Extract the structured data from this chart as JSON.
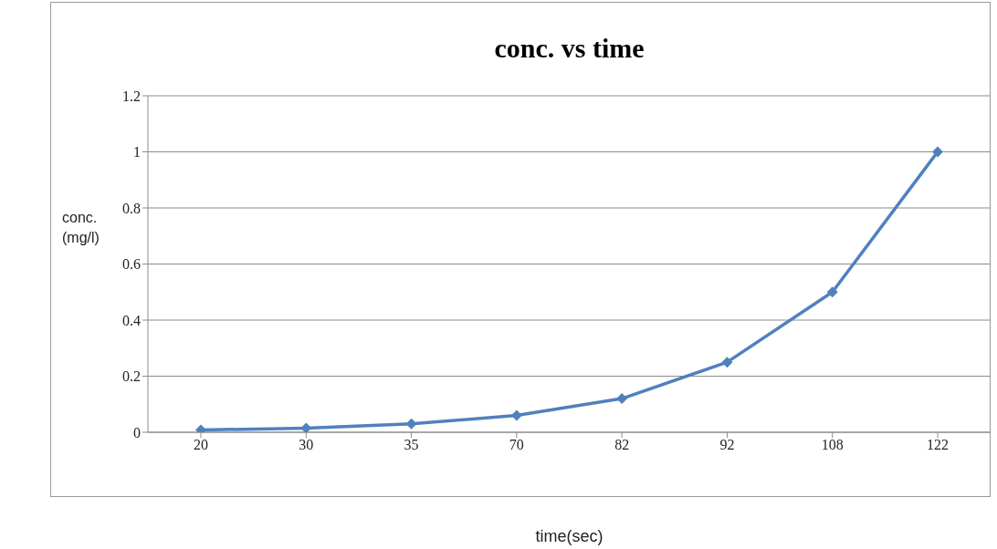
{
  "chart_data": {
    "type": "line",
    "title": "conc. vs time",
    "xlabel": "time(sec)",
    "ylabel": "conc.\n(mg/l)",
    "categories": [
      "20",
      "30",
      "35",
      "70",
      "82",
      "92",
      "108",
      "122"
    ],
    "series": [
      {
        "color": "#4f81bd",
        "values": [
          0.008,
          0.015,
          0.03,
          0.06,
          0.12,
          0.25,
          0.5,
          1.0
        ]
      }
    ],
    "ylim": [
      0,
      1.2
    ],
    "yticks": [
      0,
      0.2,
      0.4,
      0.6,
      0.8,
      1,
      1.2
    ],
    "grid": "y",
    "marker": "diamond",
    "line_style": "solid",
    "legend": false
  }
}
